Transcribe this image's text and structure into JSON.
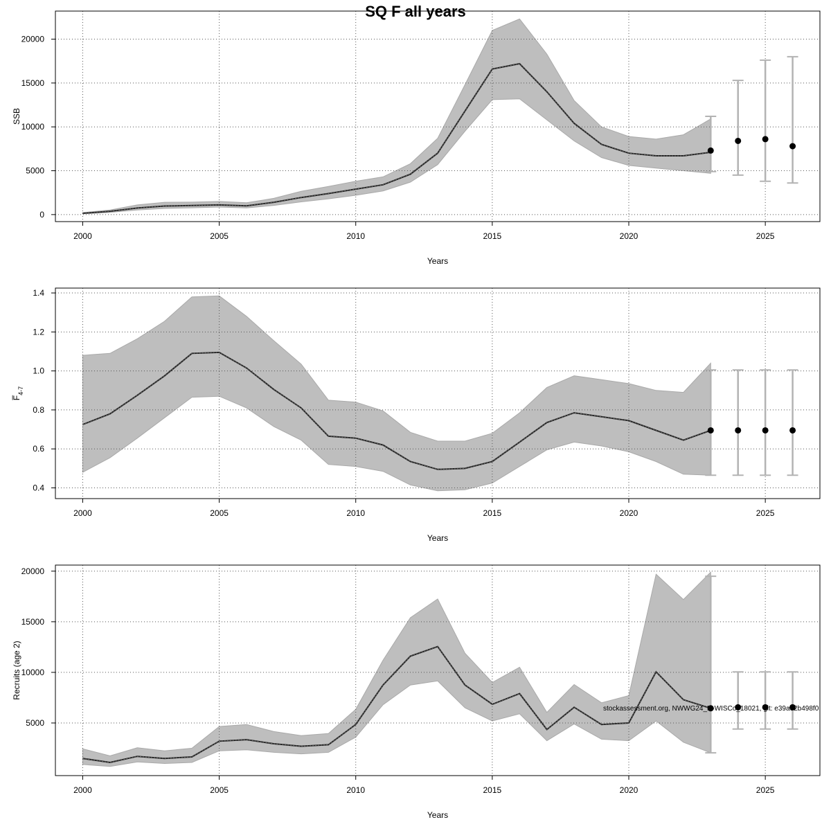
{
  "title": "SQ F all years",
  "watermark": "stockassessment.org, NWWG24_N-WISCo_18021, git: e39ae2b498f0",
  "colors": {
    "band": "#bebebe",
    "band_edge": "#a9a9a9",
    "line": "#222222",
    "forecast_bar": "#b3b3b3",
    "point": "#000000",
    "grid": "#555555"
  },
  "chart_data": [
    {
      "type": "line",
      "ylabel": "SSB",
      "xlabel": "Years",
      "xlim": [
        1999.0,
        2027.0
      ],
      "ylim": [
        -800,
        23200
      ],
      "xticks": [
        2000,
        2005,
        2010,
        2015,
        2020,
        2025
      ],
      "yticks": [
        0,
        5000,
        10000,
        15000,
        20000
      ],
      "grid": true,
      "x": [
        2000,
        2001,
        2002,
        2003,
        2004,
        2005,
        2006,
        2007,
        2008,
        2009,
        2010,
        2011,
        2012,
        2013,
        2014,
        2015,
        2016,
        2017,
        2018,
        2019,
        2020,
        2021,
        2022,
        2023
      ],
      "series": [
        {
          "values": [
            150,
            380,
            750,
            980,
            1030,
            1100,
            1000,
            1400,
            1950,
            2400,
            2900,
            3400,
            4600,
            7000,
            11800,
            16600,
            17200,
            14000,
            10400,
            8000,
            7000,
            6700,
            6700,
            7100
          ]
        }
      ],
      "lower": [
        80,
        260,
        520,
        700,
        770,
        860,
        760,
        1050,
        1450,
        1800,
        2200,
        2700,
        3700,
        5700,
        9500,
        13100,
        13200,
        10800,
        8400,
        6500,
        5600,
        5300,
        5000,
        4700
      ],
      "upper": [
        230,
        520,
        1100,
        1400,
        1420,
        1500,
        1350,
        1850,
        2650,
        3200,
        3800,
        4300,
        5800,
        8700,
        14800,
        21000,
        22300,
        18300,
        13000,
        10000,
        8900,
        8600,
        9100,
        10900
      ],
      "forecast": {
        "x": [
          2023,
          2024,
          2025,
          2026
        ],
        "values": [
          7300,
          8400,
          8600,
          7800
        ],
        "low": [
          4900,
          4500,
          3800,
          3600
        ],
        "high": [
          11200,
          15300,
          17600,
          18000
        ]
      }
    },
    {
      "type": "line",
      "ylabel": "F̅",
      "ylabel_sub": "4-7",
      "xlabel": "Years",
      "xlim": [
        1999.0,
        2027.0
      ],
      "ylim": [
        0.345,
        1.425
      ],
      "xticks": [
        2000,
        2005,
        2010,
        2015,
        2020,
        2025
      ],
      "yticks": [
        0.4,
        0.6,
        0.8,
        1.0,
        1.2,
        1.4
      ],
      "ytick_labels": [
        "0.4",
        "0.6",
        "0.8",
        "1.0",
        "1.2",
        "1.4"
      ],
      "grid": true,
      "x": [
        2000,
        2001,
        2002,
        2003,
        2004,
        2005,
        2006,
        2007,
        2008,
        2009,
        2010,
        2011,
        2012,
        2013,
        2014,
        2015,
        2016,
        2017,
        2018,
        2019,
        2020,
        2021,
        2022,
        2023
      ],
      "series": [
        {
          "values": [
            0.725,
            0.78,
            0.875,
            0.975,
            1.09,
            1.095,
            1.015,
            0.905,
            0.81,
            0.665,
            0.655,
            0.62,
            0.535,
            0.495,
            0.5,
            0.535,
            0.635,
            0.735,
            0.785,
            0.765,
            0.745,
            0.695,
            0.645,
            0.695
          ]
        }
      ],
      "lower": [
        0.48,
        0.555,
        0.655,
        0.76,
        0.865,
        0.87,
        0.81,
        0.715,
        0.645,
        0.52,
        0.51,
        0.485,
        0.415,
        0.385,
        0.39,
        0.425,
        0.51,
        0.595,
        0.635,
        0.615,
        0.585,
        0.535,
        0.47,
        0.465
      ],
      "upper": [
        1.08,
        1.09,
        1.165,
        1.255,
        1.38,
        1.385,
        1.28,
        1.155,
        1.035,
        0.85,
        0.84,
        0.795,
        0.685,
        0.64,
        0.64,
        0.68,
        0.785,
        0.915,
        0.975,
        0.955,
        0.935,
        0.9,
        0.89,
        1.04
      ],
      "forecast": {
        "x": [
          2023,
          2024,
          2025,
          2026
        ],
        "values": [
          0.695,
          0.695,
          0.695,
          0.695
        ],
        "low": [
          0.465,
          0.465,
          0.465,
          0.465
        ],
        "high": [
          1.005,
          1.005,
          1.005,
          1.005
        ]
      }
    },
    {
      "type": "line",
      "ylabel": "Recruits (age 2)",
      "xlabel": "Years",
      "xlim": [
        1999.0,
        2027.0
      ],
      "ylim": [
        -200,
        20600
      ],
      "xticks": [
        2000,
        2005,
        2010,
        2015,
        2020,
        2025
      ],
      "yticks": [
        5000,
        10000,
        15000,
        20000
      ],
      "grid": true,
      "x": [
        2000,
        2001,
        2002,
        2003,
        2004,
        2005,
        2006,
        2007,
        2008,
        2009,
        2010,
        2011,
        2012,
        2013,
        2014,
        2015,
        2016,
        2017,
        2018,
        2019,
        2020,
        2021,
        2022,
        2023
      ],
      "series": [
        {
          "values": [
            1500,
            1100,
            1700,
            1500,
            1650,
            3200,
            3350,
            2950,
            2700,
            2850,
            4850,
            8750,
            11600,
            12550,
            8750,
            6850,
            7900,
            4350,
            6550,
            4850,
            5000,
            10050,
            7300,
            6450
          ]
        }
      ],
      "lower": [
        900,
        700,
        1150,
        1000,
        1100,
        2250,
        2350,
        2100,
        1950,
        2100,
        3600,
        6800,
        8750,
        9150,
        6500,
        5200,
        5900,
        3250,
        4900,
        3400,
        3250,
        5200,
        3100,
        2050
      ],
      "upper": [
        2450,
        1750,
        2550,
        2250,
        2500,
        4650,
        4850,
        4150,
        3750,
        3950,
        6350,
        11200,
        15400,
        17250,
        11900,
        9000,
        10500,
        6050,
        8800,
        7000,
        7700,
        19700,
        17200,
        19900
      ],
      "forecast": {
        "x": [
          2023,
          2024,
          2025,
          2026
        ],
        "values": [
          6450,
          6550,
          6550,
          6550
        ],
        "low": [
          2050,
          4400,
          4400,
          4400
        ],
        "high": [
          19500,
          10050,
          10050,
          10050
        ]
      }
    }
  ]
}
